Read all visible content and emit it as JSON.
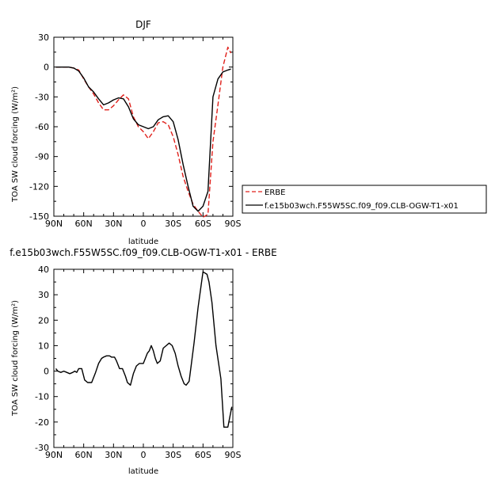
{
  "chart_data": [
    {
      "type": "line",
      "title": "DJF",
      "xlabel": "latitude",
      "ylabel": "TOA SW cloud forcing (W/m²)",
      "xlim": [
        90,
        -90
      ],
      "ylim": [
        -150,
        30
      ],
      "xticks": [
        90,
        60,
        30,
        0,
        -30,
        -60,
        -90
      ],
      "xtick_labels": [
        "90N",
        "60N",
        "30N",
        "0",
        "30S",
        "60S",
        "90S"
      ],
      "yticks": [
        -150,
        -120,
        -90,
        -60,
        -30,
        0,
        30
      ],
      "ytick_labels": [
        "-150",
        "-120",
        "-90",
        "-60",
        "-30",
        "0",
        "30"
      ],
      "legend_placement": "outside-right",
      "series": [
        {
          "name": "ERBE",
          "color": "#e0201b",
          "dash": "dashed",
          "x": [
            88,
            80,
            75,
            70,
            65,
            60,
            55,
            50,
            45,
            40,
            35,
            30,
            25,
            20,
            15,
            10,
            5,
            0,
            -5,
            -10,
            -15,
            -20,
            -25,
            -30,
            -35,
            -40,
            -45,
            -50,
            -55,
            -60,
            -65,
            -70,
            -75,
            -80,
            -85,
            -88
          ],
          "y": [
            0,
            0,
            0,
            -1,
            -3,
            -12,
            -20,
            -27,
            -36,
            -43,
            -43,
            -39,
            -33,
            -28,
            -32,
            -50,
            -60,
            -65,
            -72,
            -65,
            -56,
            -55,
            -58,
            -70,
            -88,
            -110,
            -125,
            -138,
            -145,
            -151,
            -148,
            -75,
            -38,
            0,
            20,
            14
          ]
        },
        {
          "name": "f.e15b03wch.F55W5SC.f09_f09.CLB-OGW-T1-x01",
          "color": "#000000",
          "dash": "solid",
          "x": [
            88,
            80,
            75,
            70,
            65,
            60,
            55,
            50,
            45,
            40,
            35,
            30,
            25,
            20,
            15,
            10,
            5,
            0,
            -5,
            -10,
            -15,
            -20,
            -25,
            -30,
            -35,
            -40,
            -45,
            -50,
            -55,
            -60,
            -65,
            -70,
            -75,
            -80,
            -85,
            -88
          ],
          "y": [
            0,
            0,
            0,
            -1,
            -4,
            -11,
            -20,
            -25,
            -32,
            -38,
            -36,
            -33,
            -31,
            -32,
            -40,
            -52,
            -58,
            -60,
            -62,
            -60,
            -53,
            -50,
            -49,
            -55,
            -73,
            -98,
            -120,
            -140,
            -145,
            -140,
            -125,
            -30,
            -12,
            -5,
            -3,
            -2
          ]
        }
      ]
    },
    {
      "type": "line",
      "title": "f.e15b03wch.F55W5SC.f09_f09.CLB-OGW-T1-x01 - ERBE",
      "xlabel": "latitude",
      "ylabel": "TOA SW cloud forcing (W/m²)",
      "xlim": [
        90,
        -90
      ],
      "ylim": [
        -30,
        40
      ],
      "xticks": [
        90,
        60,
        30,
        0,
        -30,
        -60,
        -90
      ],
      "xtick_labels": [
        "90N",
        "60N",
        "30N",
        "0",
        "30S",
        "60S",
        "90S"
      ],
      "yticks": [
        -30,
        -20,
        -10,
        0,
        10,
        20,
        30,
        40
      ],
      "ytick_labels": [
        "-30",
        "-20",
        "-10",
        "0",
        "10",
        "20",
        "30",
        "40"
      ],
      "series": [
        {
          "color": "#000000",
          "x": [
            88,
            86,
            83,
            80,
            77,
            74,
            71,
            69,
            67,
            65,
            62,
            59,
            56,
            52,
            48,
            45,
            42,
            40,
            37,
            34,
            32,
            29,
            27,
            24,
            21,
            18,
            16,
            13,
            10,
            7,
            4,
            2,
            0,
            -2,
            -4,
            -6,
            -8,
            -10,
            -12,
            -14,
            -17,
            -20,
            -23,
            -26,
            -29,
            -32,
            -35,
            -38,
            -41,
            -43,
            -46,
            -48,
            -51,
            -55,
            -60,
            -64,
            -66,
            -69,
            -73,
            -78,
            -81,
            -85,
            -87,
            -89
          ],
          "y": [
            1,
            0,
            -0.5,
            0,
            -0.5,
            -1,
            -0.5,
            0,
            -0.5,
            1,
            1,
            -3.5,
            -4.5,
            -4.5,
            -0.5,
            3,
            5,
            5.5,
            6,
            6,
            5.5,
            5.5,
            4,
            1,
            1,
            -2,
            -4.5,
            -5.5,
            -1,
            2,
            3,
            3,
            3,
            5,
            7,
            8,
            10,
            8,
            5,
            3,
            4,
            9,
            10,
            11,
            10,
            7,
            2,
            -2,
            -5,
            -5.5,
            -4,
            2,
            11,
            25,
            39,
            38,
            35,
            27,
            10,
            -3,
            -22,
            -22,
            -18,
            -14
          ]
        }
      ]
    }
  ]
}
